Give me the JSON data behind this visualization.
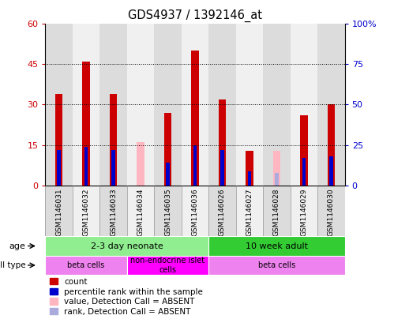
{
  "title": "GDS4937 / 1392146_at",
  "samples": [
    "GSM1146031",
    "GSM1146032",
    "GSM1146033",
    "GSM1146034",
    "GSM1146035",
    "GSM1146036",
    "GSM1146026",
    "GSM1146027",
    "GSM1146028",
    "GSM1146029",
    "GSM1146030"
  ],
  "count_values": [
    34,
    46,
    34,
    0,
    27,
    50,
    32,
    13,
    0,
    26,
    30
  ],
  "rank_values": [
    22,
    24,
    22,
    0,
    14,
    25,
    22,
    9,
    0,
    17,
    18
  ],
  "absent_count": [
    0,
    0,
    0,
    16,
    0,
    0,
    0,
    0,
    13,
    0,
    0
  ],
  "absent_rank": [
    0,
    0,
    0,
    0,
    0,
    0,
    0,
    0,
    8,
    0,
    0
  ],
  "ylim_left": [
    0,
    60
  ],
  "ylim_right": [
    0,
    100
  ],
  "yticks_left": [
    0,
    15,
    30,
    45,
    60
  ],
  "yticks_right": [
    0,
    25,
    50,
    75,
    100
  ],
  "ytick_labels_left": [
    "0",
    "15",
    "30",
    "45",
    "60"
  ],
  "ytick_labels_right": [
    "0",
    "25",
    "50",
    "75",
    "100%"
  ],
  "age_groups": [
    {
      "label": "2-3 day neonate",
      "start": 0,
      "end": 6,
      "color": "#90EE90"
    },
    {
      "label": "10 week adult",
      "start": 6,
      "end": 11,
      "color": "#33CC33"
    }
  ],
  "cell_type_groups": [
    {
      "label": "beta cells",
      "start": 0,
      "end": 3,
      "color": "#EE82EE"
    },
    {
      "label": "non-endocrine islet\ncells",
      "start": 3,
      "end": 6,
      "color": "#FF00FF"
    },
    {
      "label": "beta cells",
      "start": 6,
      "end": 11,
      "color": "#EE82EE"
    }
  ],
  "legend_items": [
    {
      "label": "count",
      "color": "#CC0000"
    },
    {
      "label": "percentile rank within the sample",
      "color": "#0000CC"
    },
    {
      "label": "value, Detection Call = ABSENT",
      "color": "#FFB6C1"
    },
    {
      "label": "rank, Detection Call = ABSENT",
      "color": "#AAAADD"
    }
  ],
  "bar_color_red": "#CC0000",
  "bar_color_blue": "#0000CC",
  "bar_color_pink": "#FFB6C1",
  "bar_color_lightblue": "#AAAADD",
  "background_color": "#FFFFFF",
  "grid_color": "#000000",
  "tick_color_left": "#CC0000",
  "tick_color_right": "#0000CC",
  "col_bg_even": "#DCDCDC",
  "col_bg_odd": "#F0F0F0"
}
